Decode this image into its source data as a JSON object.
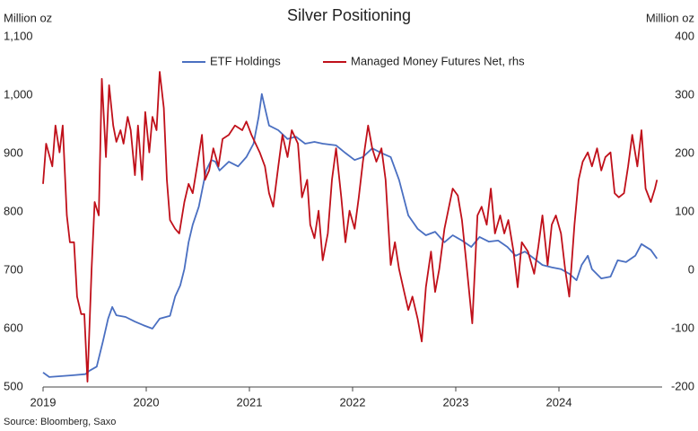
{
  "chart_data": {
    "type": "line",
    "title": "Silver Positioning",
    "ylabel": "Million oz",
    "y2label": "Million oz",
    "source": "Source: Bloomberg, Saxo",
    "xlim": [
      2019,
      2025
    ],
    "xticks": [
      2019,
      2020,
      2021,
      2022,
      2023,
      2024
    ],
    "ylim": [
      500,
      1100
    ],
    "yticks": [
      500,
      600,
      700,
      800,
      900,
      {
        "value": 1000,
        "label": "1,000"
      },
      {
        "value": 1100,
        "label": "1,100"
      }
    ],
    "y2lim": [
      -200,
      400
    ],
    "y2ticks": [
      -200,
      -100,
      0,
      100,
      200,
      300,
      400
    ],
    "grid": false,
    "legend": "top",
    "series": [
      {
        "name": "ETF Holdings",
        "color": "#4a6fc1",
        "x": [
          2019.0,
          2019.06,
          2019.28,
          2019.41,
          2019.45,
          2019.52,
          2019.58,
          2019.63,
          2019.67,
          2019.71,
          2019.8,
          2019.89,
          2019.97,
          2020.06,
          2020.13,
          2020.23,
          2020.28,
          2020.33,
          2020.37,
          2020.41,
          2020.45,
          2020.51,
          2020.58,
          2020.63,
          2020.67,
          2020.71,
          2020.8,
          2020.89,
          2020.97,
          2021.04,
          2021.09,
          2021.12,
          2021.16,
          2021.19,
          2021.28,
          2021.37,
          2021.45,
          2021.54,
          2021.63,
          2021.71,
          2021.84,
          2021.93,
          2022.02,
          2022.1,
          2022.19,
          2022.28,
          2022.37,
          2022.45,
          2022.54,
          2022.63,
          2022.71,
          2022.8,
          2022.89,
          2022.97,
          2023.06,
          2023.15,
          2023.23,
          2023.32,
          2023.41,
          2023.5,
          2023.58,
          2023.67,
          2023.76,
          2023.84,
          2023.93,
          2024.02,
          2024.1,
          2024.17,
          2024.22,
          2024.28,
          2024.32,
          2024.41,
          2024.5,
          2024.57,
          2024.65,
          2024.74,
          2024.8,
          2024.89,
          2024.95
        ],
        "values": [
          525,
          517,
          520,
          522,
          528,
          535,
          578,
          617,
          637,
          623,
          620,
          612,
          606,
          600,
          617,
          622,
          655,
          674,
          702,
          748,
          778,
          809,
          871,
          889,
          886,
          871,
          886,
          878,
          894,
          917,
          963,
          1002,
          971,
          948,
          940,
          925,
          929,
          917,
          920,
          917,
          914,
          901,
          889,
          894,
          909,
          901,
          894,
          855,
          794,
          771,
          760,
          766,
          748,
          760,
          751,
          740,
          757,
          749,
          751,
          740,
          725,
          732,
          720,
          709,
          705,
          702,
          694,
          683,
          709,
          725,
          702,
          686,
          689,
          717,
          714,
          725,
          745,
          735,
          720
        ]
      },
      {
        "name": "Managed Money Futures Net, rhs",
        "color": "#c0101a",
        "axis": "y2",
        "x": [
          2019.0,
          2019.03,
          2019.09,
          2019.12,
          2019.16,
          2019.19,
          2019.23,
          2019.26,
          2019.3,
          2019.33,
          2019.37,
          2019.4,
          2019.43,
          2019.47,
          2019.5,
          2019.54,
          2019.57,
          2019.61,
          2019.64,
          2019.68,
          2019.71,
          2019.75,
          2019.78,
          2019.82,
          2019.85,
          2019.89,
          2019.92,
          2019.96,
          2019.99,
          2020.03,
          2020.06,
          2020.1,
          2020.13,
          2020.17,
          2020.2,
          2020.23,
          2020.28,
          2020.32,
          2020.37,
          2020.41,
          2020.45,
          2020.5,
          2020.54,
          2020.57,
          2020.61,
          2020.65,
          2020.7,
          2020.74,
          2020.8,
          2020.86,
          2020.93,
          2020.97,
          2021.02,
          2021.06,
          2021.1,
          2021.15,
          2021.19,
          2021.23,
          2021.28,
          2021.32,
          2021.37,
          2021.41,
          2021.47,
          2021.51,
          2021.56,
          2021.59,
          2021.63,
          2021.67,
          2021.71,
          2021.76,
          2021.8,
          2021.84,
          2021.89,
          2021.93,
          2021.97,
          2022.02,
          2022.06,
          2022.1,
          2022.15,
          2022.19,
          2022.23,
          2022.28,
          2022.32,
          2022.37,
          2022.41,
          2022.45,
          2022.5,
          2022.54,
          2022.58,
          2022.63,
          2022.67,
          2022.71,
          2022.76,
          2022.8,
          2022.84,
          2022.89,
          2022.97,
          2023.02,
          2023.06,
          2023.1,
          2023.16,
          2023.21,
          2023.25,
          2023.3,
          2023.34,
          2023.38,
          2023.43,
          2023.47,
          2023.51,
          2023.56,
          2023.6,
          2023.64,
          2023.7,
          2023.76,
          2023.8,
          2023.84,
          2023.89,
          2023.93,
          2023.97,
          2024.02,
          2024.06,
          2024.1,
          2024.15,
          2024.19,
          2024.23,
          2024.28,
          2024.32,
          2024.37,
          2024.41,
          2024.45,
          2024.5,
          2024.54,
          2024.58,
          2024.63,
          2024.67,
          2024.71,
          2024.76,
          2024.8,
          2024.84,
          2024.89,
          2024.93,
          2024.95
        ],
        "values": [
          148,
          217,
          178,
          248,
          202,
          248,
          94,
          48,
          48,
          -45,
          -75,
          -75,
          -191,
          2,
          117,
          94,
          328,
          194,
          317,
          248,
          220,
          240,
          217,
          263,
          240,
          163,
          248,
          155,
          271,
          202,
          263,
          240,
          340,
          278,
          155,
          86,
          71,
          63,
          117,
          148,
          132,
          186,
          232,
          155,
          171,
          209,
          178,
          225,
          232,
          248,
          240,
          255,
          232,
          217,
          202,
          178,
          132,
          109,
          178,
          232,
          194,
          240,
          217,
          125,
          155,
          78,
          55,
          102,
          17,
          63,
          155,
          209,
          125,
          48,
          102,
          71,
          125,
          186,
          248,
          209,
          186,
          209,
          155,
          9,
          48,
          2,
          -37,
          -68,
          -45,
          -83,
          -122,
          -29,
          32,
          -37,
          2,
          71,
          140,
          128,
          86,
          17,
          -91,
          94,
          109,
          78,
          140,
          63,
          94,
          63,
          86,
          32,
          -29,
          48,
          32,
          -6,
          40,
          94,
          9,
          78,
          94,
          63,
          2,
          -45,
          78,
          155,
          186,
          202,
          178,
          209,
          171,
          194,
          202,
          132,
          125,
          132,
          178,
          232,
          178,
          240,
          140,
          117,
          140,
          155
        ]
      }
    ]
  }
}
